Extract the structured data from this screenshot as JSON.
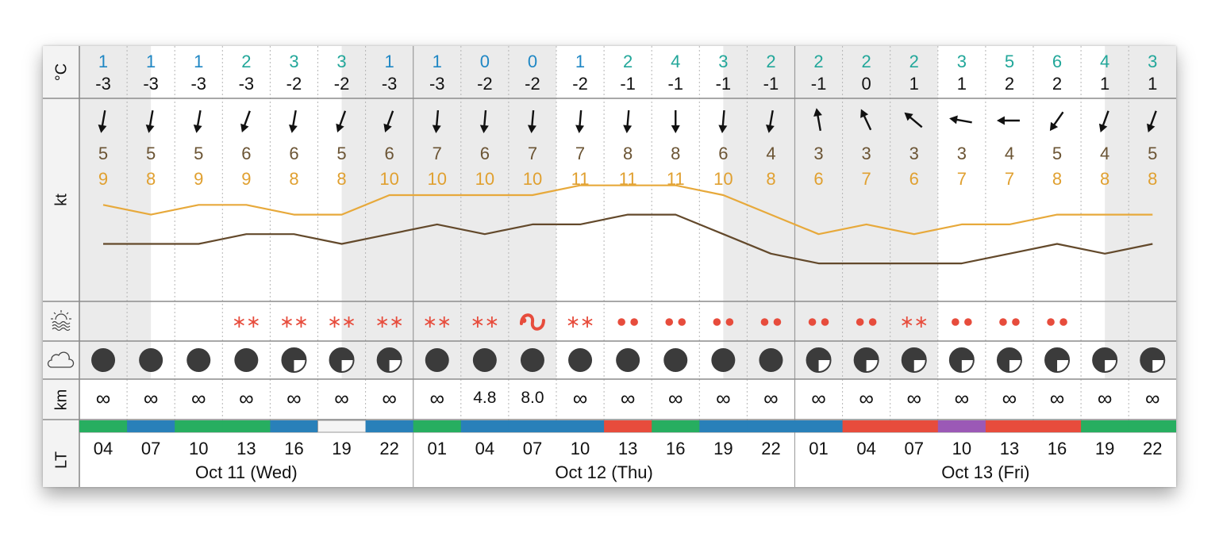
{
  "labels": {
    "temp_unit": "°C",
    "wind_unit": "kt",
    "vis_unit": "km",
    "time_unit": "LT"
  },
  "icons": {
    "weather": "sun-over-water-icon",
    "cloud": "cloud-icon"
  },
  "colors": {
    "temp_cold": "#1f87c4",
    "temp_mild": "#22a79a",
    "wind_speed_text": "#6b5434",
    "gust_text": "#e0a030",
    "wind_line": "#63492b",
    "gust_line": "#e7a93b",
    "precip": "#e74c3c",
    "cloud_fill": "#3b3b3b",
    "condition_green": "#27ae60",
    "condition_blue": "#2980b9",
    "condition_red": "#e74c3c",
    "condition_purple": "#9b59b6",
    "condition_white": "#f4f4f4"
  },
  "days": [
    "Oct 11 (Wed)",
    "Oct 12 (Thu)",
    "Oct 13 (Fri)"
  ],
  "columns": [
    {
      "hour": "04",
      "dew": "1",
      "temp": "-3",
      "dir": 190,
      "wind": "5",
      "gust": "9",
      "precip": "",
      "cloud": 1.0,
      "vis": "∞",
      "cond": "green"
    },
    {
      "hour": "07",
      "dew": "1",
      "temp": "-3",
      "dir": 190,
      "wind": "5",
      "gust": "8",
      "precip": "",
      "cloud": 1.0,
      "vis": "∞",
      "cond": "blue"
    },
    {
      "hour": "10",
      "dew": "1",
      "temp": "-3",
      "dir": 190,
      "wind": "5",
      "gust": "9",
      "precip": "",
      "cloud": 1.0,
      "vis": "∞",
      "cond": "green"
    },
    {
      "hour": "13",
      "dew": "2",
      "temp": "-3",
      "dir": 200,
      "wind": "6",
      "gust": "9",
      "precip": "snow",
      "cloud": 1.0,
      "vis": "∞",
      "cond": "green"
    },
    {
      "hour": "16",
      "dew": "3",
      "temp": "-2",
      "dir": 190,
      "wind": "6",
      "gust": "8",
      "precip": "snow",
      "cloud": 0.75,
      "vis": "∞",
      "cond": "blue"
    },
    {
      "hour": "19",
      "dew": "3",
      "temp": "-2",
      "dir": 200,
      "wind": "5",
      "gust": "8",
      "precip": "snow",
      "cloud": 0.75,
      "vis": "∞",
      "cond": "white"
    },
    {
      "hour": "22",
      "dew": "1",
      "temp": "-3",
      "dir": 200,
      "wind": "6",
      "gust": "10",
      "precip": "snow",
      "cloud": 0.75,
      "vis": "∞",
      "cond": "blue"
    },
    {
      "hour": "01",
      "dew": "1",
      "temp": "-3",
      "dir": 185,
      "wind": "7",
      "gust": "10",
      "precip": "snow",
      "cloud": 1.0,
      "vis": "∞",
      "cond": "green"
    },
    {
      "hour": "04",
      "dew": "0",
      "temp": "-2",
      "dir": 185,
      "wind": "6",
      "gust": "10",
      "precip": "snow",
      "cloud": 1.0,
      "vis": "4.8",
      "cond": "blue"
    },
    {
      "hour": "07",
      "dew": "0",
      "temp": "-2",
      "dir": 185,
      "wind": "7",
      "gust": "10",
      "precip": "mixed",
      "cloud": 1.0,
      "vis": "8.0",
      "cond": "blue"
    },
    {
      "hour": "10",
      "dew": "1",
      "temp": "-2",
      "dir": 185,
      "wind": "7",
      "gust": "11",
      "precip": "snow",
      "cloud": 1.0,
      "vis": "∞",
      "cond": "blue"
    },
    {
      "hour": "13",
      "dew": "2",
      "temp": "-1",
      "dir": 185,
      "wind": "8",
      "gust": "11",
      "precip": "rain",
      "cloud": 1.0,
      "vis": "∞",
      "cond": "red"
    },
    {
      "hour": "16",
      "dew": "4",
      "temp": "-1",
      "dir": 180,
      "wind": "8",
      "gust": "11",
      "precip": "rain",
      "cloud": 1.0,
      "vis": "∞",
      "cond": "green"
    },
    {
      "hour": "19",
      "dew": "3",
      "temp": "-1",
      "dir": 185,
      "wind": "6",
      "gust": "10",
      "precip": "rain",
      "cloud": 1.0,
      "vis": "∞",
      "cond": "blue"
    },
    {
      "hour": "22",
      "dew": "2",
      "temp": "-1",
      "dir": 190,
      "wind": "4",
      "gust": "8",
      "precip": "rain",
      "cloud": 1.0,
      "vis": "∞",
      "cond": "blue"
    },
    {
      "hour": "01",
      "dew": "2",
      "temp": "-1",
      "dir": 350,
      "wind": "3",
      "gust": "6",
      "precip": "rain",
      "cloud": 0.75,
      "vis": "∞",
      "cond": "blue"
    },
    {
      "hour": "04",
      "dew": "2",
      "temp": "0",
      "dir": 335,
      "wind": "3",
      "gust": "7",
      "precip": "rain",
      "cloud": 0.75,
      "vis": "∞",
      "cond": "red"
    },
    {
      "hour": "07",
      "dew": "2",
      "temp": "1",
      "dir": 310,
      "wind": "3",
      "gust": "6",
      "precip": "snow",
      "cloud": 0.75,
      "vis": "∞",
      "cond": "red"
    },
    {
      "hour": "10",
      "dew": "3",
      "temp": "1",
      "dir": 280,
      "wind": "3",
      "gust": "7",
      "precip": "rain",
      "cloud": 0.75,
      "vis": "∞",
      "cond": "purple"
    },
    {
      "hour": "13",
      "dew": "5",
      "temp": "2",
      "dir": 270,
      "wind": "4",
      "gust": "7",
      "precip": "rain",
      "cloud": 0.75,
      "vis": "∞",
      "cond": "red"
    },
    {
      "hour": "16",
      "dew": "6",
      "temp": "2",
      "dir": 215,
      "wind": "5",
      "gust": "8",
      "precip": "rain",
      "cloud": 0.75,
      "vis": "∞",
      "cond": "red"
    },
    {
      "hour": "19",
      "dew": "4",
      "temp": "1",
      "dir": 200,
      "wind": "4",
      "gust": "8",
      "precip": "",
      "cloud": 0.75,
      "vis": "∞",
      "cond": "green"
    },
    {
      "hour": "22",
      "dew": "3",
      "temp": "1",
      "dir": 200,
      "wind": "5",
      "gust": "8",
      "precip": "",
      "cloud": 0.75,
      "vis": "∞",
      "cond": "green"
    }
  ],
  "chart_data": {
    "type": "line",
    "x": [
      "04",
      "07",
      "10",
      "13",
      "16",
      "19",
      "22",
      "01",
      "04",
      "07",
      "10",
      "13",
      "16",
      "19",
      "22",
      "01",
      "04",
      "07",
      "10",
      "13",
      "16",
      "19",
      "22"
    ],
    "series": [
      {
        "values": [
          5,
          5,
          5,
          6,
          6,
          5,
          6,
          7,
          6,
          7,
          7,
          8,
          8,
          6,
          4,
          3,
          3,
          3,
          3,
          4,
          5,
          4,
          5
        ]
      },
      {
        "values": [
          9,
          8,
          9,
          9,
          8,
          8,
          10,
          10,
          10,
          10,
          11,
          11,
          11,
          10,
          8,
          6,
          7,
          6,
          7,
          7,
          8,
          8,
          8
        ]
      }
    ],
    "ylabel": "kt",
    "ylim": [
      0,
      14
    ],
    "grid": true
  }
}
